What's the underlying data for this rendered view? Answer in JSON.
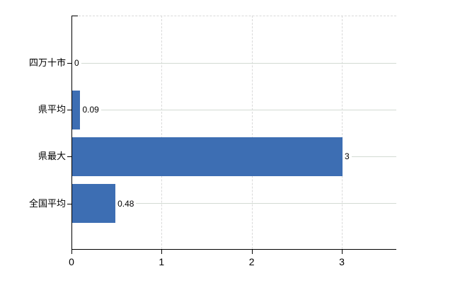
{
  "chart_data": {
    "type": "bar",
    "orientation": "horizontal",
    "title": "",
    "categories": [
      "四万十市",
      "県平均",
      "県最大",
      "全国平均"
    ],
    "values": [
      0,
      0.09,
      3,
      0.48
    ],
    "value_labels": [
      "0",
      "0.09",
      "3",
      "0.48"
    ],
    "series": [
      {
        "name": "",
        "values": [
          0,
          0.09,
          3,
          0.48
        ]
      }
    ],
    "x_axis": {
      "ticks": [
        0,
        1,
        2,
        3
      ],
      "tick_labels": [
        "0",
        "1",
        "2",
        "3"
      ],
      "range": [
        0,
        3.6
      ]
    },
    "y_axis": {
      "order_top_to_bottom": [
        "四万十市",
        "県平均",
        "県最大",
        "全国平均"
      ]
    },
    "grid": {
      "vertical_gridlines": true,
      "gridline_style": "dashed",
      "top_border_style": "dashed",
      "row_leader_lines": true
    },
    "legend": {
      "visible": false
    }
  },
  "colors": {
    "bar": "#3d6eb3",
    "axis": "#000000",
    "gridline": "#d9d9d9",
    "leader_line": "#d3dbd3",
    "text": "#000000",
    "background": "#ffffff"
  }
}
